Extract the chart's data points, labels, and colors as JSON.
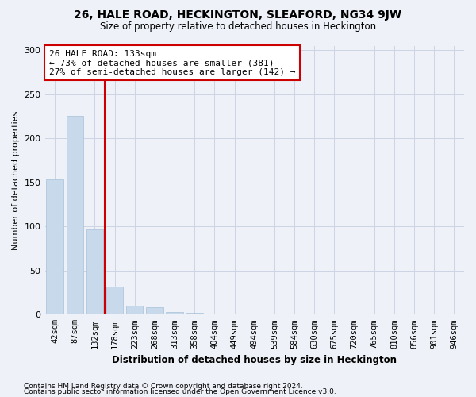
{
  "title": "26, HALE ROAD, HECKINGTON, SLEAFORD, NG34 9JW",
  "subtitle": "Size of property relative to detached houses in Heckington",
  "xlabel": "Distribution of detached houses by size in Heckington",
  "ylabel": "Number of detached properties",
  "bar_color": "#c8d9ec",
  "bar_edge_color": "#a8c0d8",
  "bins": [
    "42sqm",
    "87sqm",
    "132sqm",
    "178sqm",
    "223sqm",
    "268sqm",
    "313sqm",
    "358sqm",
    "404sqm",
    "449sqm",
    "494sqm",
    "539sqm",
    "584sqm",
    "630sqm",
    "675sqm",
    "720sqm",
    "765sqm",
    "810sqm",
    "856sqm",
    "901sqm",
    "946sqm"
  ],
  "values": [
    153,
    225,
    97,
    32,
    10,
    8,
    3,
    2,
    0,
    0,
    0,
    0,
    0,
    0,
    0,
    0,
    0,
    0,
    0,
    0,
    0
  ],
  "property_line_bin": 2,
  "annotation_text": "26 HALE ROAD: 133sqm\n← 73% of detached houses are smaller (381)\n27% of semi-detached houses are larger (142) →",
  "annotation_box_color": "#ffffff",
  "annotation_box_edge": "#cc0000",
  "vline_color": "#cc0000",
  "ylim": [
    0,
    305
  ],
  "yticks": [
    0,
    50,
    100,
    150,
    200,
    250,
    300
  ],
  "grid_color": "#ccd5e5",
  "bg_color": "#eef2f8",
  "footer1": "Contains HM Land Registry data © Crown copyright and database right 2024.",
  "footer2": "Contains public sector information licensed under the Open Government Licence v3.0."
}
